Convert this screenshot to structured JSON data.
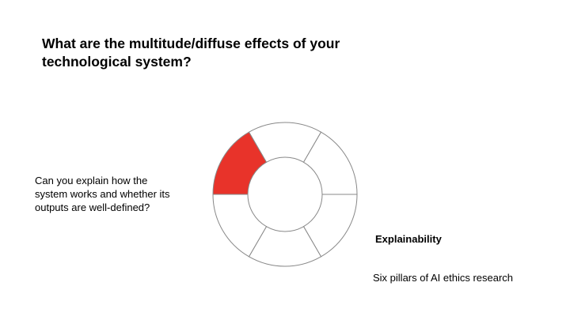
{
  "slide": {
    "title": "What are the multitude/diffuse effects of your technological system?",
    "question_lines": [
      "Can you explain how the",
      "system works and whether its",
      "outputs are well-defined?"
    ],
    "highlighted_pillar": "Explainability",
    "caption": "Six pillars of AI ethics research"
  },
  "wheel": {
    "segments": 6,
    "highlighted_segment_index": 5,
    "highlight_color": "#e8332a",
    "outline_color": "#888888"
  }
}
